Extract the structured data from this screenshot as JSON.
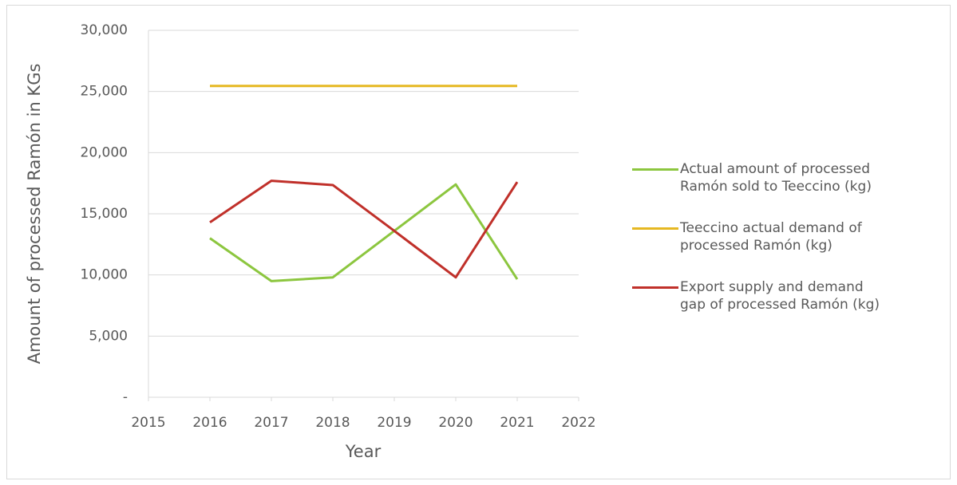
{
  "chart_data": {
    "type": "line",
    "x_label": "Year",
    "y_label": "Amount of processed Ramón in KGs",
    "x": [
      2016,
      2017,
      2018,
      2019,
      2020,
      2021
    ],
    "series": [
      {
        "name": "Actual amount of processed Ramón sold to Teeccino (kg)",
        "color": "#8cc63f",
        "values": [
          13000,
          9500,
          9800,
          13600,
          17400,
          9650
        ]
      },
      {
        "name": "Teeccino actual demand of processed Ramón (kg)",
        "color": "#e6b822",
        "values": [
          25450,
          25450,
          25450,
          25450,
          25450,
          25450
        ]
      },
      {
        "name": "Export supply and demand gap of processed Ramón (kg)",
        "color": "#c0302a",
        "values": [
          14300,
          17700,
          17350,
          13600,
          9800,
          17600
        ]
      }
    ],
    "xlim": [
      2015,
      2022
    ],
    "xticks": [
      2015,
      2016,
      2017,
      2018,
      2019,
      2020,
      2021,
      2022
    ],
    "ylim": [
      0,
      30000
    ],
    "yticks": [
      {
        "value": 0,
        "label": "-"
      },
      {
        "value": 5000,
        "label": "5,000"
      },
      {
        "value": 10000,
        "label": "10,000"
      },
      {
        "value": 15000,
        "label": "15,000"
      },
      {
        "value": 20000,
        "label": "20,000"
      },
      {
        "value": 25000,
        "label": "25,000"
      },
      {
        "value": 30000,
        "label": "30,000"
      }
    ],
    "grid": true,
    "legend": "right"
  }
}
